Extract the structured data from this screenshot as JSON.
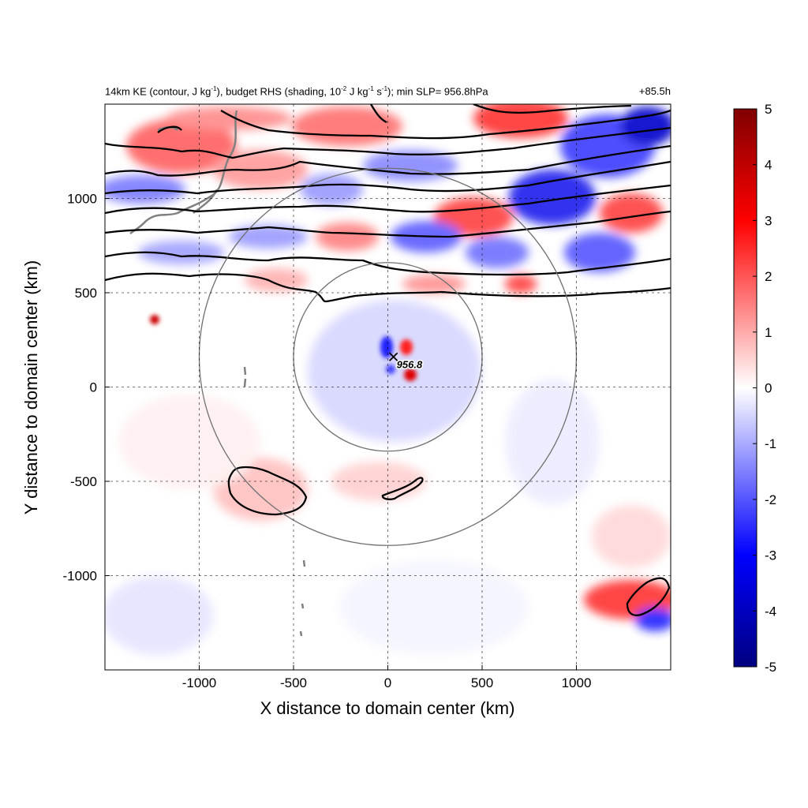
{
  "chart_data": {
    "type": "heatmap",
    "title": {
      "left_parts": [
        "14km KE (contour, J kg",
        "-1",
        "), budget RHS (shading, 10",
        "-2",
        " J kg",
        "-1",
        " s",
        "-1",
        "); min SLP= 956.8hPa"
      ],
      "right": "+85.5h"
    },
    "xlabel": "X distance to domain center (km)",
    "ylabel": "Y distance to domain center (km)",
    "xlim": [
      -1500,
      1500
    ],
    "ylim": [
      -1500,
      1500
    ],
    "x_ticks": [
      -1000,
      -500,
      0,
      500,
      1000
    ],
    "y_ticks": [
      -1000,
      -500,
      0,
      500,
      1000
    ],
    "grid": "dashed",
    "colorbar": {
      "min": -5,
      "max": 5,
      "ticks": [
        5,
        4,
        3,
        2,
        1,
        0,
        -1,
        -2,
        -3,
        -4,
        -5
      ],
      "colors": {
        "low": "#000080",
        "mid": "#ffffff",
        "high": "#800000"
      }
    },
    "storm_center": {
      "x": 30,
      "y": 160,
      "label": "956.8"
    },
    "range_circles_center": {
      "x": 0,
      "y": 160
    },
    "range_circle_radii_km": [
      500,
      1000
    ]
  }
}
